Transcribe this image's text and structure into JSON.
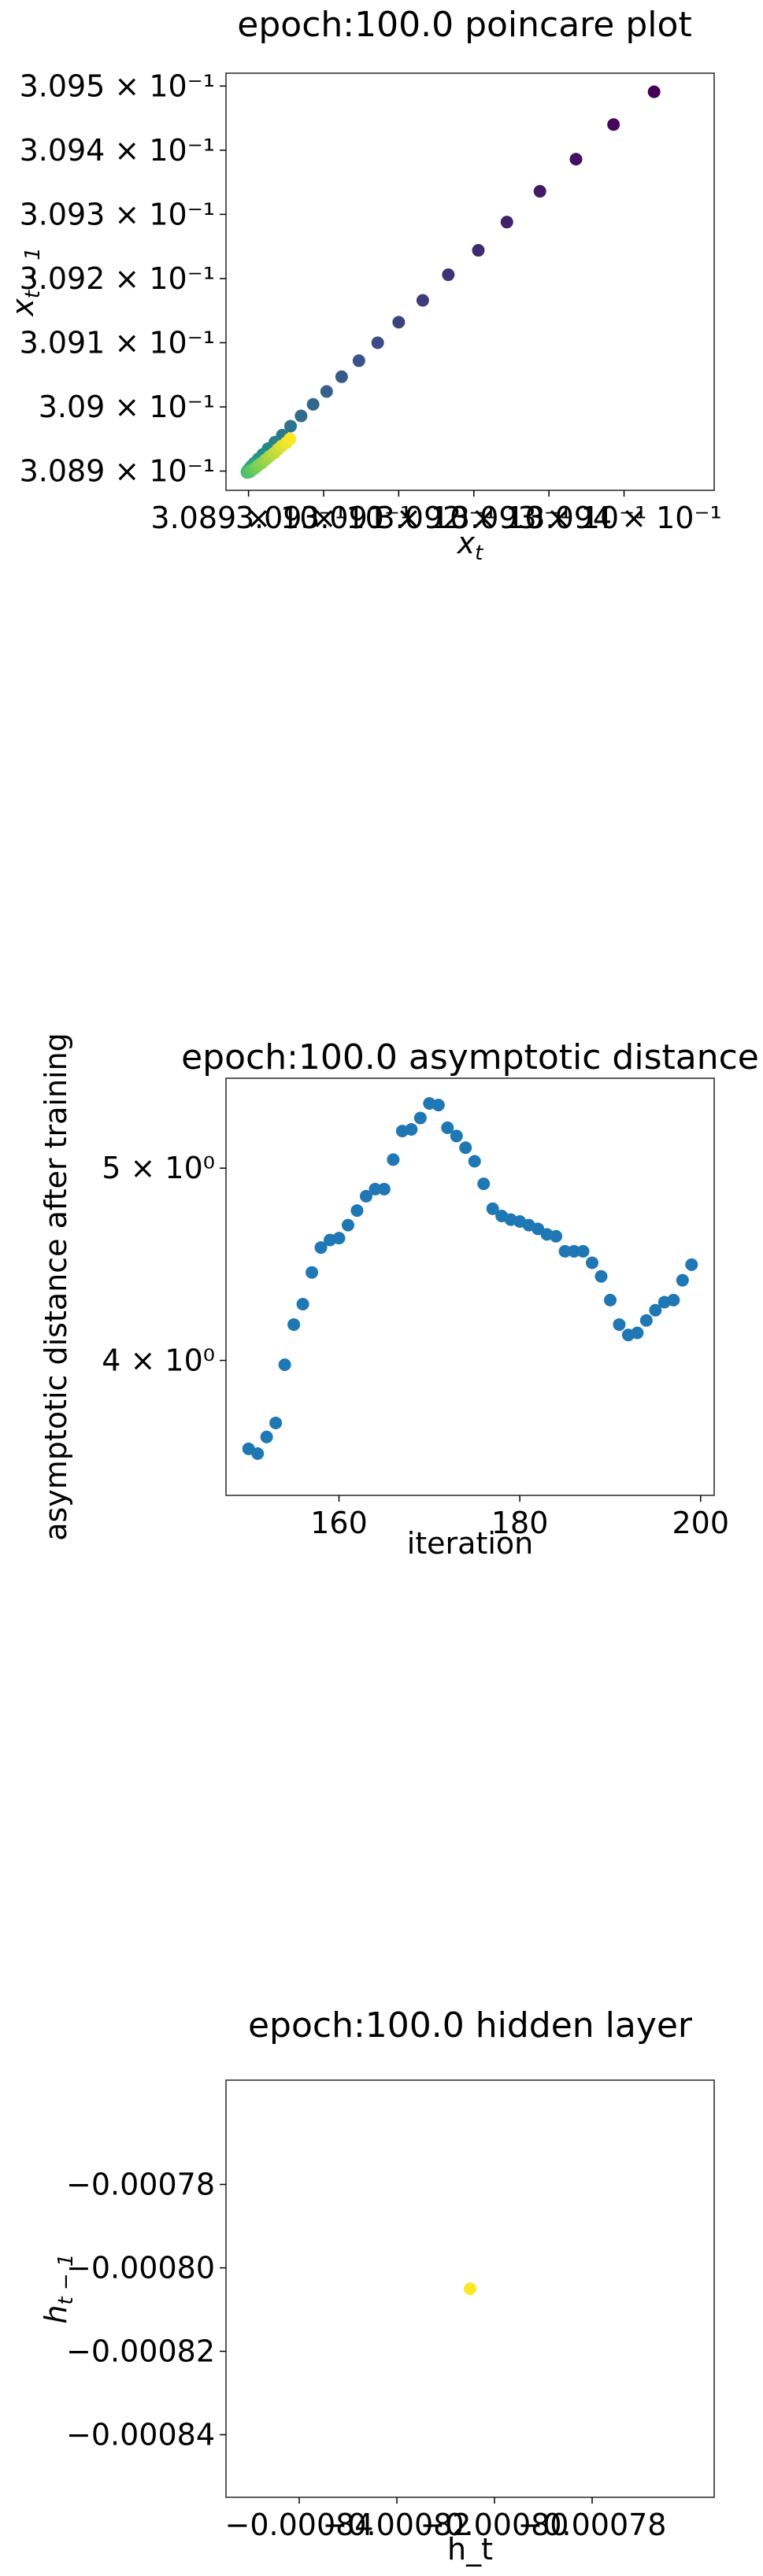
{
  "chart_data": [
    {
      "type": "scatter",
      "title": "epoch:100.0 poincare plot",
      "xlabel": "x_t",
      "ylabel": "x_{t-1}",
      "xlim": [
        0.30887,
        0.30952
      ],
      "ylim": [
        0.30887,
        0.30952
      ],
      "x_ticks": [
        {
          "value": 0.3089,
          "label": "3.089 × 10⁻¹"
        },
        {
          "value": 0.309,
          "label": "3.09 × 10⁻¹"
        },
        {
          "value": 0.3091,
          "label": "3.091 × 10⁻¹"
        },
        {
          "value": 0.3092,
          "label": "3.092 × 10⁻¹"
        },
        {
          "value": 0.3093,
          "label": "3.093 × 10⁻¹"
        },
        {
          "value": 0.3094,
          "label": "3.094 × 10⁻¹"
        }
      ],
      "y_ticks": [
        {
          "value": 0.3089,
          "label": "3.089 × 10⁻¹"
        },
        {
          "value": 0.309,
          "label": "3.09 × 10⁻¹"
        },
        {
          "value": 0.3091,
          "label": "3.091 × 10⁻¹"
        },
        {
          "value": 0.3092,
          "label": "3.092 × 10⁻¹"
        },
        {
          "value": 0.3093,
          "label": "3.093 × 10⁻¹"
        },
        {
          "value": 0.3094,
          "label": "3.094 × 10⁻¹"
        },
        {
          "value": 0.3095,
          "label": "3.095 × 10⁻¹"
        }
      ],
      "colormap": [
        "#440154",
        "#3b528b",
        "#21918c",
        "#5ec962",
        "#fde725"
      ],
      "points": [
        {
          "x": 0.30944,
          "y": 0.309491
        },
        {
          "x": 0.309386,
          "y": 0.30944
        },
        {
          "x": 0.309336,
          "y": 0.309386
        },
        {
          "x": 0.309288,
          "y": 0.309336
        },
        {
          "x": 0.309244,
          "y": 0.309288
        },
        {
          "x": 0.309206,
          "y": 0.309244
        },
        {
          "x": 0.309166,
          "y": 0.309206
        },
        {
          "x": 0.309132,
          "y": 0.309166
        },
        {
          "x": 0.3091,
          "y": 0.309132
        },
        {
          "x": 0.309072,
          "y": 0.3091
        },
        {
          "x": 0.309047,
          "y": 0.309072
        },
        {
          "x": 0.309024,
          "y": 0.309047
        },
        {
          "x": 0.309004,
          "y": 0.309024
        },
        {
          "x": 0.308986,
          "y": 0.309004
        },
        {
          "x": 0.30897,
          "y": 0.308986
        },
        {
          "x": 0.308956,
          "y": 0.30897
        },
        {
          "x": 0.308945,
          "y": 0.308956
        },
        {
          "x": 0.308935,
          "y": 0.308945
        },
        {
          "x": 0.308926,
          "y": 0.308935
        },
        {
          "x": 0.308919,
          "y": 0.308926
        },
        {
          "x": 0.308913,
          "y": 0.308919
        },
        {
          "x": 0.308908,
          "y": 0.308913
        },
        {
          "x": 0.308904,
          "y": 0.308908
        },
        {
          "x": 0.308901,
          "y": 0.308904
        },
        {
          "x": 0.308899,
          "y": 0.308901
        },
        {
          "x": 0.308898,
          "y": 0.308899
        },
        {
          "x": 0.308898,
          "y": 0.308898
        },
        {
          "x": 0.308899,
          "y": 0.308898
        },
        {
          "x": 0.308902,
          "y": 0.308899
        },
        {
          "x": 0.308905,
          "y": 0.308902
        },
        {
          "x": 0.308909,
          "y": 0.308905
        },
        {
          "x": 0.308913,
          "y": 0.308909
        },
        {
          "x": 0.308918,
          "y": 0.308913
        },
        {
          "x": 0.308923,
          "y": 0.308918
        },
        {
          "x": 0.308928,
          "y": 0.308923
        },
        {
          "x": 0.308934,
          "y": 0.308928
        },
        {
          "x": 0.308939,
          "y": 0.308934
        },
        {
          "x": 0.308944,
          "y": 0.308939
        },
        {
          "x": 0.30895,
          "y": 0.308944
        },
        {
          "x": 0.308955,
          "y": 0.30895
        }
      ]
    },
    {
      "type": "scatter",
      "title": "epoch:100.0 asymptotic distance",
      "xlabel": "iteration",
      "ylabel": "asymptotic distance after training",
      "xlim": [
        147.5,
        201.5
      ],
      "ylim": [
        3.42,
        5.55
      ],
      "y_scale": "log",
      "color": "#1f77b4",
      "x_ticks": [
        {
          "value": 160,
          "label": "160"
        },
        {
          "value": 180,
          "label": "180"
        },
        {
          "value": 200,
          "label": "200"
        }
      ],
      "y_ticks": [
        {
          "value": 4,
          "label": "4 × 10⁰"
        },
        {
          "value": 5,
          "label": "5 × 10⁰"
        }
      ],
      "x": [
        150,
        151,
        152,
        153,
        154,
        155,
        156,
        157,
        158,
        159,
        160,
        161,
        162,
        163,
        164,
        165,
        166,
        167,
        168,
        169,
        170,
        171,
        172,
        173,
        174,
        175,
        176,
        177,
        178,
        179,
        180,
        181,
        182,
        183,
        184,
        185,
        186,
        187,
        188,
        189,
        190,
        191,
        192,
        193,
        194,
        195,
        196,
        197,
        198,
        199
      ],
      "y": [
        3.61,
        3.59,
        3.66,
        3.72,
        3.98,
        4.17,
        4.27,
        4.43,
        4.56,
        4.6,
        4.61,
        4.68,
        4.76,
        4.84,
        4.88,
        4.88,
        5.05,
        5.22,
        5.23,
        5.3,
        5.39,
        5.38,
        5.24,
        5.19,
        5.12,
        5.04,
        4.91,
        4.77,
        4.73,
        4.71,
        4.7,
        4.68,
        4.66,
        4.63,
        4.62,
        4.54,
        4.54,
        4.54,
        4.48,
        4.41,
        4.29,
        4.17,
        4.12,
        4.13,
        4.19,
        4.24,
        4.28,
        4.29,
        4.39,
        4.47
      ]
    },
    {
      "type": "scatter",
      "title": "epoch:100.0 hidden layer",
      "xlabel": "h_t",
      "ylabel": "h_{t-1}",
      "xlim": [
        -0.000855,
        -0.000755
      ],
      "ylim": [
        -0.000855,
        -0.000755
      ],
      "x_ticks": [
        {
          "value": -0.00084,
          "label": "−0.00084"
        },
        {
          "value": -0.00082,
          "label": "−0.00082"
        },
        {
          "value": -0.0008,
          "label": "−0.00080"
        },
        {
          "value": -0.00078,
          "label": "−0.00078"
        }
      ],
      "y_ticks": [
        {
          "value": -0.00084,
          "label": "−0.00084"
        },
        {
          "value": -0.00082,
          "label": "−0.00082"
        },
        {
          "value": -0.0008,
          "label": "−0.00080"
        },
        {
          "value": -0.00078,
          "label": "−0.00078"
        }
      ],
      "color": "#fde725",
      "points": [
        {
          "x": -0.000805,
          "y": -0.000805
        }
      ]
    }
  ]
}
